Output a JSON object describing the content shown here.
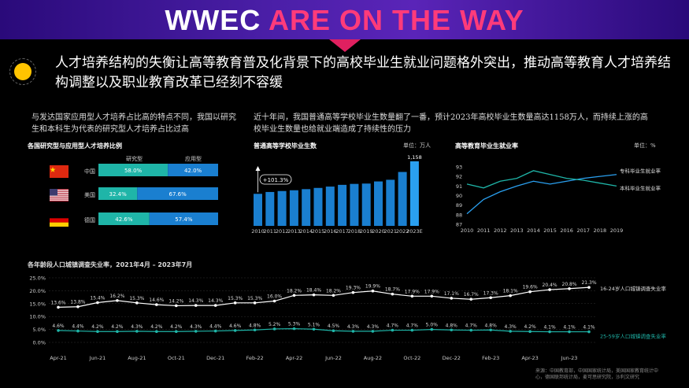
{
  "banner": {
    "title_prefix": "WWEC ",
    "title_highlight": "ARE ON THE WAY"
  },
  "headline": "人才培养结构的失衡让高等教育普及化背景下的高校毕业生就业问题格外突出，推动高等教育人才培养结构调整以及职业教育改革已经刻不容缓",
  "left_sub": "与发达国家应用型人才培养占比高的特点不同，我国以研究生和本科生为代表的研究型人才培养占比过高",
  "right_sub": "近十年间，我国普通高等学校毕业生数量翻了一番，预计2023年高校毕业生数量高达1158万人，而持续上涨的高校毕业生数量也给就业端造成了持续性的压力",
  "source": "来源：中国教育部，中国国家统计局，美国国家教育统计中心，德国联邦统计局，麦可思研究院，沙利文研究",
  "colors": {
    "teal": "#1fb5a8",
    "blue": "#1a7fd0",
    "banner_accent": "#ff3b7a"
  },
  "chart_data": [
    {
      "type": "bar",
      "title": "各国研究型与应用型人才培养比例",
      "stacked": true,
      "orientation": "horizontal",
      "categories": [
        "中国",
        "美国",
        "德国"
      ],
      "series": [
        {
          "name": "研究型",
          "values": [
            58.0,
            32.4,
            42.6
          ],
          "labels": [
            "58.0%",
            "32.4%",
            "42.6%"
          ]
        },
        {
          "name": "应用型",
          "values": [
            42.0,
            67.6,
            57.4
          ],
          "labels": [
            "42.0%",
            "67.6%",
            "57.4%"
          ]
        }
      ]
    },
    {
      "type": "bar",
      "title": "普通高等学校毕业生数",
      "unit": "单位：万人",
      "categories": [
        "2010",
        "2011",
        "2012",
        "2013",
        "2014",
        "2015",
        "2016",
        "2017",
        "2018",
        "2019",
        "2020",
        "2021",
        "2022",
        "2023E"
      ],
      "values": [
        575,
        608,
        625,
        639,
        659,
        681,
        705,
        736,
        753,
        759,
        797,
        827,
        967,
        1158
      ],
      "top_label": "1,158",
      "annotation": "+101.3%"
    },
    {
      "type": "line",
      "title": "高等教育毕业生就业率",
      "unit": "单位：%",
      "x": [
        "2010",
        "2011",
        "2012",
        "2013",
        "2014",
        "2015",
        "2016",
        "2017",
        "2018",
        "2019"
      ],
      "yticks": [
        "93",
        "92",
        "91",
        "90",
        "89",
        "88",
        "87"
      ],
      "ylim": [
        87,
        93
      ],
      "series": [
        {
          "name": "专科毕业生就业率",
          "values": [
            88.1,
            89.6,
            90.4,
            91.0,
            91.5,
            91.2,
            91.5,
            91.8,
            92.0,
            92.2
          ]
        },
        {
          "name": "本科毕业生就业率",
          "values": [
            91.2,
            90.8,
            91.5,
            91.8,
            92.6,
            92.2,
            91.8,
            91.6,
            91.3,
            91.0
          ]
        }
      ]
    },
    {
      "type": "line",
      "title": "各年龄段人口城镇调查失业率，2021年4月 – 2023年7月",
      "yticks": [
        "25.0%",
        "20.0%",
        "15.0%",
        "10.0%",
        "5.0%",
        "0.0%"
      ],
      "ylim": [
        0,
        25
      ],
      "xticks": [
        "Apr-21",
        "Jun-21",
        "Aug-21",
        "Oct-21",
        "Dec-21",
        "Feb-22",
        "Apr-22",
        "Jun-22",
        "Aug-22",
        "Oct-22",
        "Dec-22",
        "Feb-23",
        "Apr-23",
        "Jun-23"
      ],
      "series": [
        {
          "name": "16-24岁人口城镇调查失业率",
          "values": [
            13.6,
            13.8,
            15.4,
            16.2,
            15.3,
            14.6,
            14.2,
            14.3,
            14.3,
            15.3,
            15.3,
            16.0,
            18.2,
            18.4,
            18.2,
            19.3,
            19.9,
            18.7,
            17.9,
            17.9,
            17.1,
            16.7,
            17.3,
            18.1,
            19.6,
            20.4,
            20.8,
            21.3
          ],
          "labels": [
            "13.6%",
            "13.8%",
            "15.4%",
            "16.2%",
            "15.3%",
            "14.6%",
            "14.2%",
            "14.3%",
            "14.3%",
            "15.3%",
            "15.3%",
            "16.0%",
            "18.2%",
            "18.4%",
            "18.2%",
            "19.3%",
            "19.9%",
            "18.7%",
            "17.9%",
            "17.9%",
            "17.1%",
            "16.7%",
            "17.3%",
            "18.1%",
            "19.6%",
            "20.4%",
            "20.8%",
            "21.3%"
          ]
        },
        {
          "name": "25-59岁人口城镇调查失业率",
          "values": [
            4.6,
            4.4,
            4.2,
            4.2,
            4.3,
            4.2,
            4.2,
            4.3,
            4.4,
            4.6,
            4.8,
            5.2,
            5.3,
            5.1,
            4.5,
            4.3,
            4.3,
            4.7,
            4.7,
            5.0,
            4.8,
            4.7,
            4.8,
            4.3,
            4.2,
            4.1,
            4.1,
            4.1
          ],
          "labels": [
            "4.6%",
            "4.4%",
            "4.2%",
            "4.2%",
            "4.3%",
            "4.2%",
            "4.2%",
            "4.3%",
            "4.4%",
            "4.6%",
            "4.8%",
            "5.2%",
            "5.3%",
            "5.1%",
            "4.5%",
            "4.3%",
            "4.3%",
            "4.7%",
            "4.7%",
            "5.0%",
            "4.8%",
            "4.7%",
            "4.8%",
            "4.3%",
            "4.2%",
            "4.1%",
            "4.1%",
            "4.1%"
          ]
        }
      ]
    }
  ]
}
